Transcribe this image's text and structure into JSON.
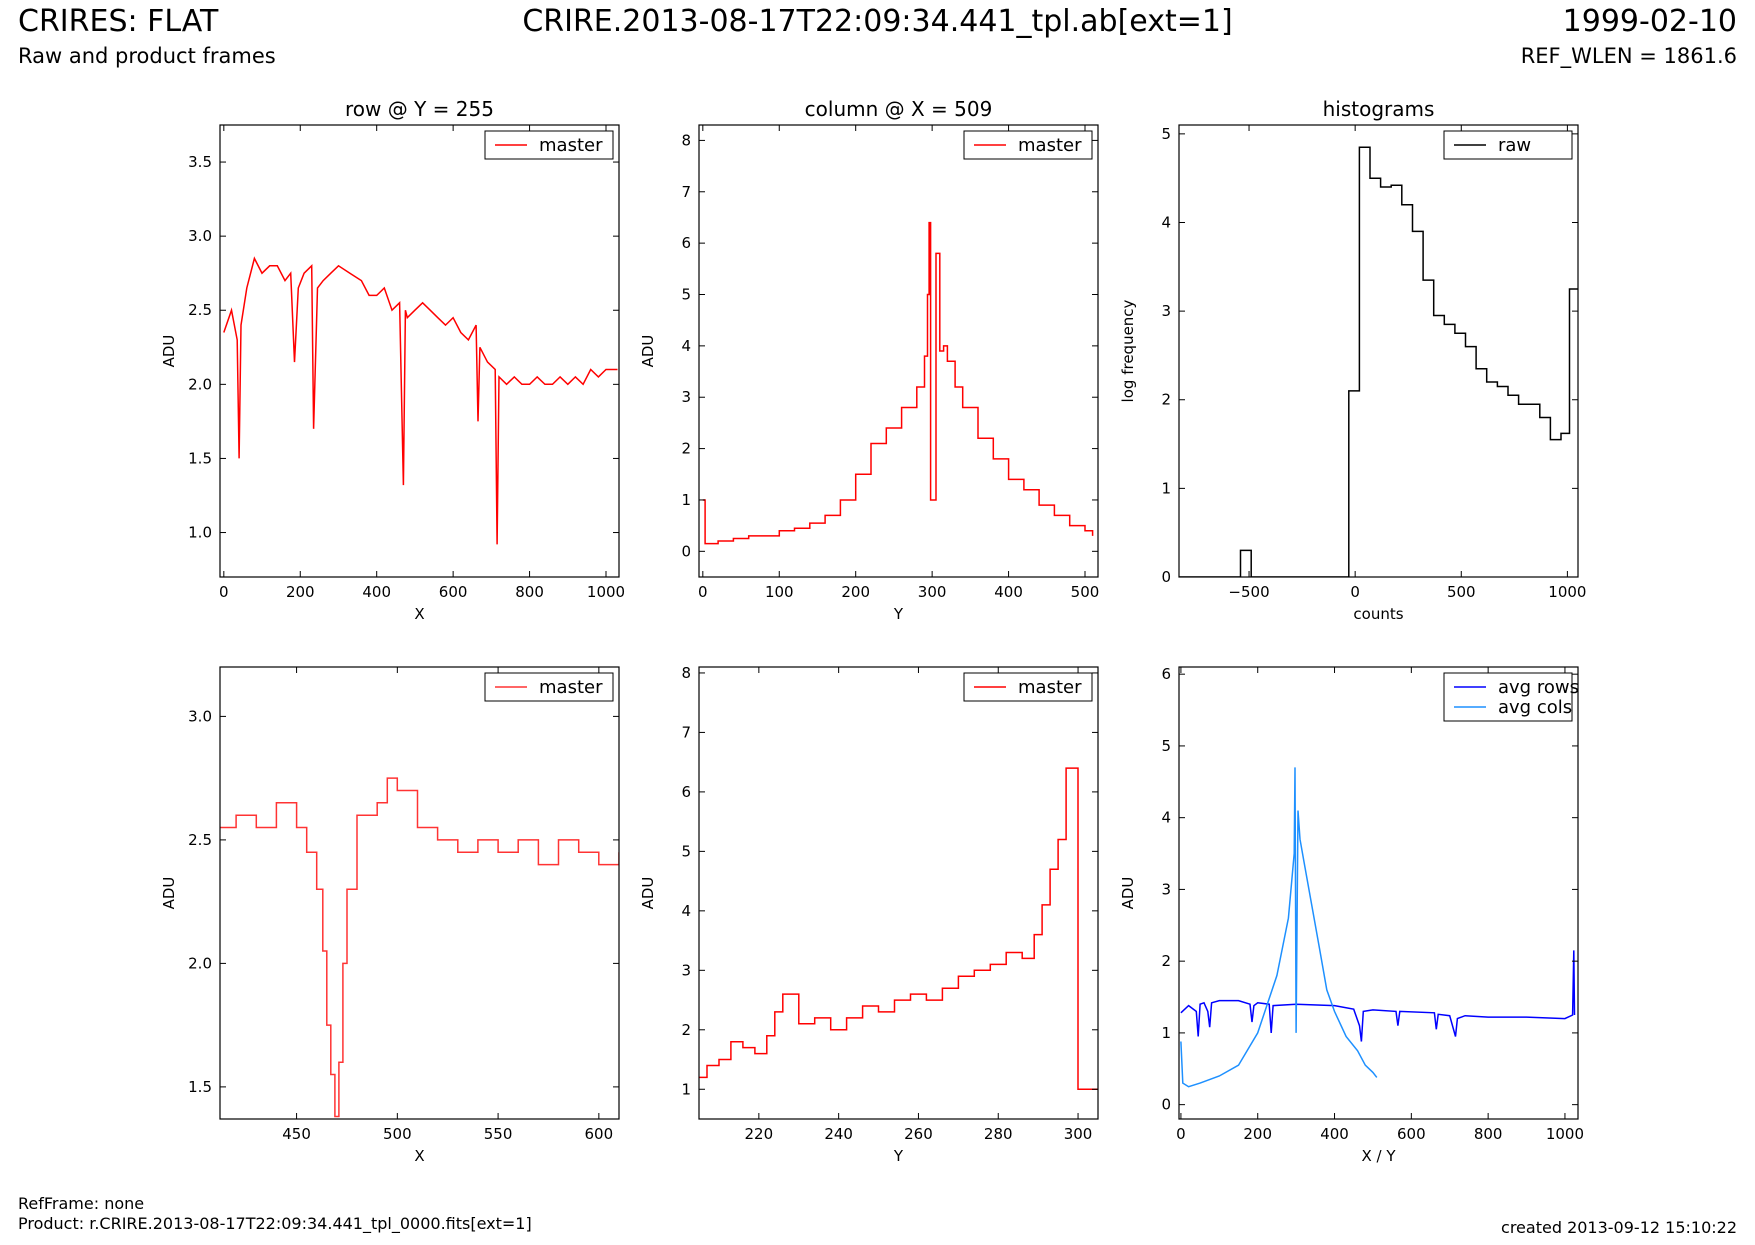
{
  "header": {
    "title": "CRIRES: FLAT",
    "subtitle": "Raw and product frames",
    "file": "CRIRE.2013-08-17T22:09:34.441_tpl.ab[ext=1]",
    "date": "1999-02-10",
    "ref_wlen": "REF_WLEN = 1861.6"
  },
  "footer": {
    "refframe": "RefFrame: none",
    "product": "Product: r.CRIRE.2013-08-17T22:09:34.441_tpl_0000.fits[ext=1]",
    "created": "created 2013-09-12 15:10:22"
  },
  "colors": {
    "master": "#ff0000",
    "raw": "#000000",
    "avg_rows": "#0000ff",
    "avg_cols": "#1e90ff"
  },
  "chart_data": [
    {
      "id": "row-full",
      "type": "line",
      "title": "row @ Y = 255",
      "xlabel": "X",
      "ylabel": "ADU",
      "xlim": [
        -10,
        1034
      ],
      "ylim": [
        0.7,
        3.75
      ],
      "xticks": [
        0,
        200,
        400,
        600,
        800,
        1000
      ],
      "yticks": [
        1.0,
        1.5,
        2.0,
        2.5,
        3.0,
        3.5
      ],
      "xticklabels": [
        "0",
        "200",
        "400",
        "600",
        "800",
        "1000"
      ],
      "yticklabels": [
        "1.0",
        "1.5",
        "2.0",
        "2.5",
        "3.0",
        "3.5"
      ],
      "legend": "upper-right",
      "series": [
        {
          "name": "master",
          "color": "#ff0000",
          "step": false,
          "x": [
            0,
            20,
            35,
            40,
            45,
            60,
            80,
            100,
            120,
            140,
            160,
            175,
            185,
            195,
            210,
            230,
            235,
            245,
            260,
            280,
            300,
            330,
            360,
            380,
            400,
            420,
            440,
            460,
            470,
            475,
            480,
            500,
            520,
            540,
            560,
            580,
            600,
            620,
            640,
            660,
            665,
            670,
            690,
            710,
            715,
            720,
            740,
            760,
            780,
            800,
            820,
            840,
            860,
            880,
            900,
            920,
            940,
            960,
            980,
            1000,
            1020,
            1030
          ],
          "y": [
            2.35,
            2.5,
            2.3,
            1.5,
            2.4,
            2.65,
            2.85,
            2.75,
            2.8,
            2.8,
            2.7,
            2.75,
            2.15,
            2.65,
            2.75,
            2.8,
            1.7,
            2.65,
            2.7,
            2.75,
            2.8,
            2.75,
            2.7,
            2.6,
            2.6,
            2.65,
            2.5,
            2.55,
            1.32,
            2.5,
            2.45,
            2.5,
            2.55,
            2.5,
            2.45,
            2.4,
            2.45,
            2.35,
            2.3,
            2.4,
            1.75,
            2.25,
            2.15,
            2.1,
            0.92,
            2.05,
            2.0,
            2.05,
            2.0,
            2.0,
            2.05,
            2.0,
            2.0,
            2.05,
            2.0,
            2.05,
            2.0,
            2.1,
            2.05,
            2.1,
            2.1,
            2.1
          ]
        }
      ]
    },
    {
      "id": "col-full",
      "type": "line",
      "title": "column @ X = 509",
      "xlabel": "Y",
      "ylabel": "ADU",
      "xlim": [
        -5,
        517
      ],
      "ylim": [
        -0.5,
        8.3
      ],
      "xticks": [
        0,
        100,
        200,
        300,
        400,
        500
      ],
      "yticks": [
        0,
        1,
        2,
        3,
        4,
        5,
        6,
        7,
        8
      ],
      "xticklabels": [
        "0",
        "100",
        "200",
        "300",
        "400",
        "500"
      ],
      "yticklabels": [
        "0",
        "1",
        "2",
        "3",
        "4",
        "5",
        "6",
        "7",
        "8"
      ],
      "legend": "upper-right",
      "series": [
        {
          "name": "master",
          "color": "#ff0000",
          "step": true,
          "x": [
            0,
            3,
            20,
            40,
            60,
            80,
            100,
            120,
            140,
            160,
            180,
            200,
            220,
            240,
            260,
            280,
            290,
            294,
            296,
            298,
            300,
            305,
            310,
            315,
            320,
            330,
            340,
            360,
            380,
            400,
            420,
            440,
            460,
            480,
            500,
            510
          ],
          "y": [
            1.0,
            0.15,
            0.2,
            0.25,
            0.3,
            0.3,
            0.4,
            0.45,
            0.55,
            0.7,
            1.0,
            1.5,
            2.1,
            2.4,
            2.8,
            3.2,
            3.8,
            5.0,
            6.4,
            1.0,
            1.0,
            5.8,
            3.9,
            4.0,
            3.7,
            3.2,
            2.8,
            2.2,
            1.8,
            1.4,
            1.2,
            0.9,
            0.7,
            0.5,
            0.4,
            0.3
          ]
        }
      ]
    },
    {
      "id": "hist",
      "type": "line",
      "title": "histograms",
      "xlabel": "counts",
      "ylabel": "log frequency",
      "xlim": [
        -830,
        1050
      ],
      "ylim": [
        0,
        5.1
      ],
      "xticks": [
        -500,
        0,
        500,
        1000
      ],
      "yticks": [
        0,
        1,
        2,
        3,
        4,
        5
      ],
      "xticklabels": [
        "−500",
        "0",
        "500",
        "1000"
      ],
      "yticklabels": [
        "0",
        "1",
        "2",
        "3",
        "4",
        "5"
      ],
      "legend": "upper-right",
      "series": [
        {
          "name": "raw",
          "color": "#000000",
          "step": true,
          "x": [
            -830,
            -540,
            -490,
            -80,
            -30,
            20,
            70,
            120,
            170,
            220,
            270,
            320,
            370,
            420,
            470,
            520,
            570,
            620,
            670,
            720,
            770,
            820,
            870,
            920,
            970,
            1010,
            1050
          ],
          "y": [
            0,
            0.3,
            0,
            0,
            2.1,
            4.85,
            4.5,
            4.4,
            4.42,
            4.2,
            3.9,
            3.35,
            2.95,
            2.85,
            2.75,
            2.6,
            2.35,
            2.2,
            2.15,
            2.05,
            1.95,
            1.95,
            1.8,
            1.55,
            1.62,
            3.25,
            3.25
          ]
        }
      ]
    },
    {
      "id": "row-zoom",
      "type": "line",
      "title": "",
      "xlabel": "X",
      "ylabel": "ADU",
      "xlim": [
        412,
        610
      ],
      "ylim": [
        1.37,
        3.2
      ],
      "xticks": [
        450,
        500,
        550,
        600
      ],
      "yticks": [
        1.5,
        2.0,
        2.5,
        3.0
      ],
      "xticklabels": [
        "450",
        "500",
        "550",
        "600"
      ],
      "yticklabels": [
        "1.5",
        "2.0",
        "2.5",
        "3.0"
      ],
      "legend": "upper-right",
      "series": [
        {
          "name": "master",
          "color": "#ff3333",
          "step": true,
          "x": [
            412,
            420,
            430,
            440,
            450,
            455,
            460,
            463,
            465,
            467,
            469,
            471,
            473,
            475,
            480,
            490,
            495,
            500,
            510,
            520,
            530,
            540,
            550,
            560,
            570,
            580,
            590,
            600,
            610
          ],
          "y": [
            2.55,
            2.6,
            2.55,
            2.65,
            2.55,
            2.45,
            2.3,
            2.05,
            1.75,
            1.55,
            1.38,
            1.6,
            2.0,
            2.3,
            2.6,
            2.65,
            2.75,
            2.7,
            2.55,
            2.5,
            2.45,
            2.5,
            2.45,
            2.5,
            2.4,
            2.5,
            2.45,
            2.4,
            2.45
          ]
        }
      ]
    },
    {
      "id": "col-zoom",
      "type": "line",
      "title": "",
      "xlabel": "Y",
      "ylabel": "ADU",
      "xlim": [
        205,
        305
      ],
      "ylim": [
        0.5,
        8.1
      ],
      "xticks": [
        220,
        240,
        260,
        280,
        300
      ],
      "yticks": [
        1,
        2,
        3,
        4,
        5,
        6,
        7,
        8
      ],
      "xticklabels": [
        "220",
        "240",
        "260",
        "280",
        "300"
      ],
      "yticklabels": [
        "1",
        "2",
        "3",
        "4",
        "5",
        "6",
        "7",
        "8"
      ],
      "legend": "upper-right",
      "series": [
        {
          "name": "master",
          "color": "#ff0000",
          "step": true,
          "x": [
            205,
            207,
            210,
            213,
            216,
            219,
            222,
            224,
            226,
            230,
            234,
            238,
            242,
            246,
            250,
            254,
            258,
            262,
            266,
            270,
            274,
            278,
            282,
            286,
            289,
            291,
            293,
            295,
            297,
            300,
            305
          ],
          "y": [
            1.2,
            1.4,
            1.5,
            1.8,
            1.7,
            1.6,
            1.9,
            2.3,
            2.6,
            2.1,
            2.2,
            2.0,
            2.2,
            2.4,
            2.3,
            2.5,
            2.6,
            2.5,
            2.7,
            2.9,
            3.0,
            3.1,
            3.3,
            3.2,
            3.6,
            4.1,
            4.7,
            5.2,
            6.4,
            1.0,
            1.0
          ]
        }
      ]
    },
    {
      "id": "avg",
      "type": "line",
      "title": "",
      "xlabel": "X / Y",
      "ylabel": "ADU",
      "xlim": [
        -5,
        1034
      ],
      "ylim": [
        -0.2,
        6.1
      ],
      "xticks": [
        0,
        200,
        400,
        600,
        800,
        1000
      ],
      "yticks": [
        0,
        1,
        2,
        3,
        4,
        5,
        6
      ],
      "xticklabels": [
        "0",
        "200",
        "400",
        "600",
        "800",
        "1000"
      ],
      "yticklabels": [
        "0",
        "1",
        "2",
        "3",
        "4",
        "5",
        "6"
      ],
      "legend": "upper-right",
      "series": [
        {
          "name": "avg rows",
          "color": "#0000ff",
          "step": false,
          "x": [
            0,
            20,
            40,
            45,
            50,
            60,
            70,
            75,
            80,
            100,
            150,
            180,
            185,
            190,
            200,
            230,
            235,
            240,
            300,
            400,
            450,
            465,
            470,
            475,
            500,
            560,
            565,
            570,
            660,
            665,
            670,
            700,
            715,
            720,
            740,
            800,
            900,
            1000,
            1020,
            1023,
            1025
          ],
          "y": [
            1.28,
            1.38,
            1.3,
            0.95,
            1.4,
            1.42,
            1.3,
            1.08,
            1.42,
            1.45,
            1.45,
            1.4,
            1.15,
            1.38,
            1.42,
            1.4,
            1.0,
            1.38,
            1.4,
            1.38,
            1.33,
            1.1,
            0.88,
            1.3,
            1.32,
            1.3,
            1.1,
            1.3,
            1.28,
            1.05,
            1.26,
            1.24,
            0.95,
            1.2,
            1.24,
            1.22,
            1.22,
            1.2,
            1.25,
            2.15,
            1.25
          ]
        },
        {
          "name": "avg cols",
          "color": "#1e90ff",
          "step": false,
          "x": [
            0,
            5,
            20,
            50,
            100,
            150,
            200,
            250,
            280,
            295,
            297,
            300,
            305,
            310,
            320,
            340,
            360,
            380,
            400,
            430,
            460,
            480,
            500,
            510
          ],
          "y": [
            0.88,
            0.3,
            0.25,
            0.3,
            0.4,
            0.55,
            1.0,
            1.8,
            2.6,
            3.5,
            4.7,
            1.0,
            4.1,
            3.7,
            3.4,
            2.8,
            2.2,
            1.6,
            1.3,
            0.95,
            0.75,
            0.55,
            0.45,
            0.38
          ]
        }
      ]
    }
  ]
}
